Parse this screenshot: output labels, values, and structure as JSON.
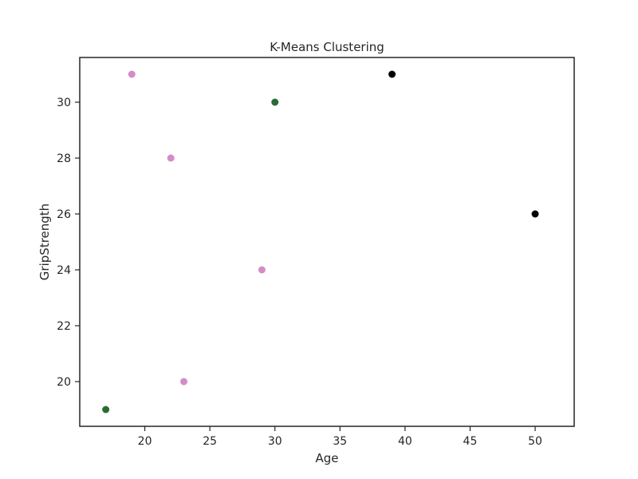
{
  "chart_data": {
    "type": "scatter",
    "title": "K-Means Clustering",
    "xlabel": "Age",
    "ylabel": "GripStrength",
    "xlim": [
      15,
      53
    ],
    "ylim": [
      18.4,
      31.6
    ],
    "xticks": [
      20,
      25,
      30,
      35,
      40,
      45,
      50
    ],
    "yticks": [
      20,
      22,
      24,
      26,
      28,
      30
    ],
    "grid": false,
    "legend": "none",
    "clusters": [
      {
        "color": "#d48cc8",
        "points": [
          {
            "x": 19,
            "y": 31
          },
          {
            "x": 22,
            "y": 28
          },
          {
            "x": 29,
            "y": 24
          },
          {
            "x": 23,
            "y": 20
          }
        ]
      },
      {
        "color": "#2a6b35",
        "points": [
          {
            "x": 30,
            "y": 30
          },
          {
            "x": 17,
            "y": 19
          }
        ]
      },
      {
        "color": "#000000",
        "points": [
          {
            "x": 39,
            "y": 31
          },
          {
            "x": 50,
            "y": 26
          }
        ]
      }
    ]
  }
}
